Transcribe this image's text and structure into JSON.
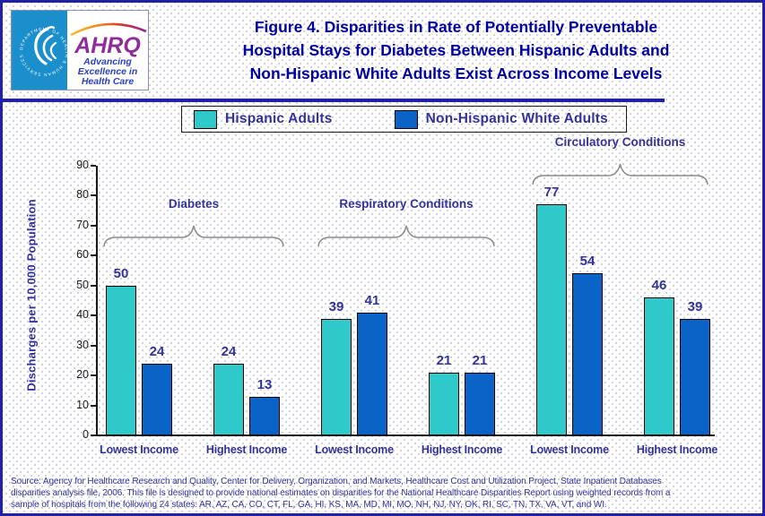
{
  "header": {
    "logo": {
      "org_abbr": "AHRQ",
      "tagline_lines": [
        "Advancing",
        "Excellence in",
        "Health Care"
      ],
      "seal_text": "DEPARTMENT OF HEALTH & HUMAN SERVICES - USA"
    },
    "title_lines": [
      "Figure 4. Disparities in Rate of Potentially Preventable",
      "Hospital Stays for Diabetes Between Hispanic Adults and",
      "Non-Hispanic White Adults Exist Across Income Levels"
    ]
  },
  "legend": {
    "items": [
      {
        "label": "Hispanic Adults",
        "color": "#30C9C9"
      },
      {
        "label": "Non-Hispanic White Adults",
        "color": "#0A64C8"
      }
    ]
  },
  "chart_data": {
    "type": "bar",
    "title": "Figure 4. Disparities in Rate of Potentially Preventable Hospital Stays for Diabetes Between Hispanic Adults and Non-Hispanic White Adults Exist Across Income Levels",
    "xlabel": "",
    "ylabel": "Discharges per 10,000 Population",
    "ylim": [
      0,
      90
    ],
    "yticks": [
      0,
      10,
      20,
      30,
      40,
      50,
      60,
      70,
      80,
      90
    ],
    "grid": false,
    "legend_position": "top",
    "categories": [
      "Lowest Income",
      "Highest Income",
      "Lowest Income",
      "Highest Income",
      "Lowest Income",
      "Highest Income"
    ],
    "condition_groups": [
      {
        "label": "Diabetes",
        "category_indexes": [
          0,
          1
        ]
      },
      {
        "label": "Respiratory Conditions",
        "category_indexes": [
          2,
          3
        ]
      },
      {
        "label": "Circulatory Conditions",
        "category_indexes": [
          4,
          5
        ]
      }
    ],
    "series": [
      {
        "name": "Hispanic Adults",
        "color": "#30C9C9",
        "values": [
          50,
          24,
          39,
          21,
          77,
          46
        ]
      },
      {
        "name": "Non-Hispanic White Adults",
        "color": "#0A64C8",
        "values": [
          24,
          13,
          41,
          21,
          54,
          39
        ]
      }
    ],
    "bar_value_labels": true
  },
  "footer": {
    "source_lines": [
      "Source: Agency for Healthcare Research and Quality, Center for Delivery, Organization, and Markets, Healthcare Cost and Utilization Project, State Inpatient Databases",
      "disparities analysis file, 2006. This file is designed to provide national estimates on disparities for the National Healthcare Disparities Report using weighted records from a",
      "sample of hospitals from the following 24 states: AR, AZ, CA, CO, CT, FL, GA, HI, KS, MA, MD, MI, MO, NH, NJ, NY, OK, RI, SC, TN, TX, VA, VT, and WI."
    ]
  },
  "colors": {
    "frame": "#2121A8",
    "title_text": "#0000A0",
    "label_text": "#333399",
    "hispanic_bar": "#30C9C9",
    "white_bar": "#0A64C8",
    "brace": "#8a8a8a"
  }
}
